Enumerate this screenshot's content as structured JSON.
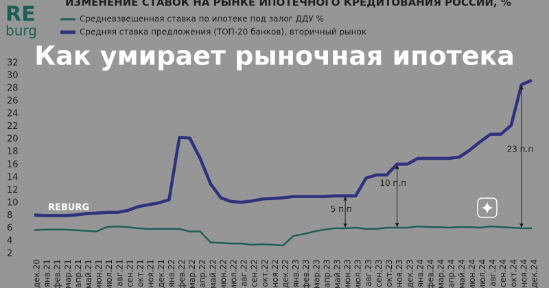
{
  "logo": {
    "top": "RE",
    "bottom": "burg"
  },
  "headline": "Как умирает рыночная ипотека",
  "watermark": "REBURG",
  "chart_data": {
    "type": "line",
    "title": "ИЗМЕНЕНИЕ СТАВОК НА РЫНКЕ ИПОТЕЧНОГО КРЕДИТОВАНИЯ РОССИИ, %",
    "categories": [
      "дек.20",
      "янв.21",
      "фев.21",
      "мар.21",
      "апр.21",
      "май.21",
      "июн.21",
      "июл.21",
      "авг.21",
      "сен.21",
      "окт.21",
      "ноя.21",
      "дек.21",
      "янв.22",
      "фев.22",
      "мар.22",
      "апр.22",
      "май.22",
      "июн.22",
      "июл.22",
      "авг.22",
      "сен.22",
      "окт.22",
      "ноя.22",
      "дек.22",
      "янв.23",
      "фев.23",
      "мар.23",
      "апр.23",
      "май.23",
      "июн.23",
      "июл.23",
      "авг.23",
      "сен.23",
      "окт.23",
      "ноя.23",
      "дек.23",
      "янв.24",
      "фев.24",
      "мар.24",
      "апр.24",
      "май.24",
      "июн.24",
      "июл.24",
      "авг.24",
      "сен.24",
      "окт.24",
      "ноя.24",
      "дек.24"
    ],
    "series": [
      {
        "name": "Средневзвешенная ставка по ипотеке под залог ДДУ %",
        "color": "#2f9c86",
        "values": [
          5.7,
          5.8,
          5.8,
          5.8,
          5.7,
          5.6,
          5.5,
          6.2,
          6.3,
          6.2,
          6.0,
          5.9,
          5.9,
          5.9,
          5.9,
          5.5,
          5.5,
          3.8,
          3.7,
          3.6,
          3.6,
          3.4,
          3.5,
          3.4,
          3.3,
          4.8,
          5.1,
          5.5,
          5.8,
          6.0,
          6.0,
          6.1,
          5.9,
          5.9,
          6.1,
          6.1,
          6.1,
          6.3,
          6.2,
          6.2,
          6.1,
          6.2,
          6.2,
          6.1,
          6.3,
          6.2,
          6.1,
          6.0,
          6.0
        ]
      },
      {
        "name": "Средняя ставка предложения (ТОП-20 банков), вторичный рынок",
        "color": "#4b50c8",
        "values": [
          8.1,
          8.0,
          8.0,
          8.0,
          8.1,
          8.3,
          8.4,
          8.5,
          8.5,
          8.8,
          9.4,
          9.7,
          10.0,
          10.5,
          20.3,
          20.2,
          17.0,
          13.0,
          10.8,
          10.2,
          10.1,
          10.3,
          10.6,
          10.7,
          10.8,
          11.0,
          11.0,
          11.0,
          11.0,
          11.1,
          11.1,
          11.1,
          13.9,
          14.4,
          14.4,
          16.1,
          16.1,
          17.0,
          17.0,
          17.0,
          17.0,
          17.2,
          18.3,
          19.6,
          20.8,
          20.8,
          22.2,
          28.6,
          29.3
        ]
      }
    ],
    "ylim": [
      2,
      32
    ],
    "yticks": [
      2,
      4,
      6,
      8,
      10,
      12,
      14,
      16,
      18,
      20,
      22,
      24,
      26,
      28,
      30,
      32
    ],
    "grid": false,
    "annotations": [
      "5 п.п",
      "10 п.п",
      "23 п.п"
    ]
  }
}
